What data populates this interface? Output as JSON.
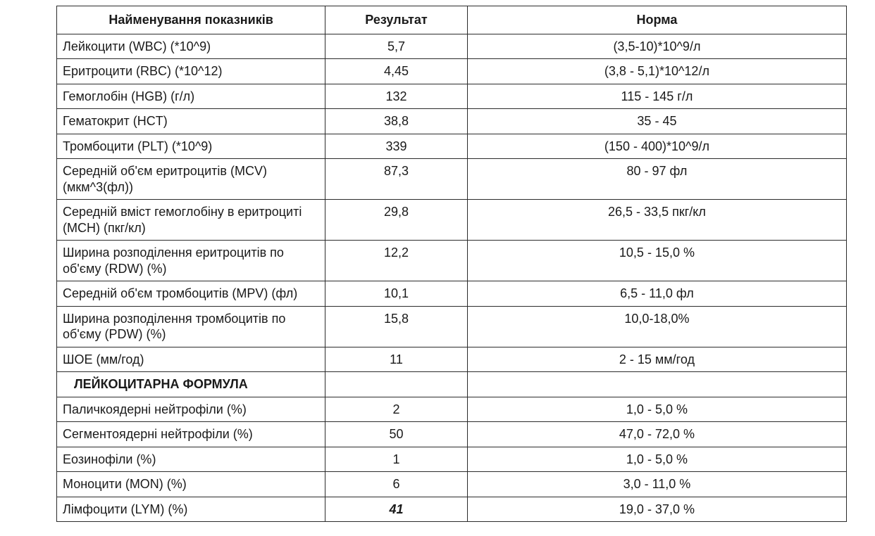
{
  "table": {
    "columns": [
      "Найменування показників",
      "Результат",
      "Норма"
    ],
    "column_widths_pct": [
      34,
      18,
      48
    ],
    "border_color": "#2b2b2b",
    "text_color": "#1a1a1a",
    "background_color": "#ffffff",
    "header_fontsize_pt": 14,
    "cell_fontsize_pt": 14,
    "emphasis_row_index": 16,
    "section_row_index": 11,
    "rows": [
      {
        "name": "Лейкоцити (WBC) (*10^9)",
        "result": "5,7",
        "norm": "(3,5-10)*10^9/л"
      },
      {
        "name": "Еритроцити (RBC) (*10^12)",
        "result": "4,45",
        "norm": "(3,8 - 5,1)*10^12/л"
      },
      {
        "name": "Гемоглобін (HGB) (г/л)",
        "result": "132",
        "norm": "115 - 145 г/л"
      },
      {
        "name": "Гематокрит (HCT)",
        "result": "38,8",
        "norm": "35 - 45"
      },
      {
        "name": "Тромбоцити (PLT) (*10^9)",
        "result": "339",
        "norm": "(150 - 400)*10^9/л"
      },
      {
        "name": "Середній об'єм еритроцитів (MCV) (мкм^3(фл))",
        "result": "87,3",
        "norm": "80 - 97 фл"
      },
      {
        "name": "Середній вміст гемоглобіну в еритроциті (MCH) (пкг/кл)",
        "result": "29,8",
        "norm": "26,5 - 33,5 пкг/кл"
      },
      {
        "name": "Ширина розподілення еритроцитів по об'єму (RDW) (%)",
        "result": "12,2",
        "norm": "10,5 - 15,0 %"
      },
      {
        "name": "Середній об'єм тромбоцитів (MPV) (фл)",
        "result": "10,1",
        "norm": "6,5 - 11,0 фл"
      },
      {
        "name": "Ширина розподілення тромбоцитів по об'єму (PDW) (%)",
        "result": "15,8",
        "norm": "10,0-18,0%"
      },
      {
        "name": "ШОЕ (мм/год)",
        "result": "11",
        "norm": "2 - 15 мм/год"
      },
      {
        "name": "ЛЕЙКОЦИТАРНА ФОРМУЛА",
        "result": "",
        "norm": "",
        "section": true
      },
      {
        "name": "Паличкоядерні нейтрофіли (%)",
        "result": "2",
        "norm": "1,0 - 5,0 %"
      },
      {
        "name": "Сегментоядерні нейтрофіли (%)",
        "result": "50",
        "norm": "47,0 - 72,0 %"
      },
      {
        "name": "Еозинофіли (%)",
        "result": "1",
        "norm": "1,0 - 5,0 %"
      },
      {
        "name": "Моноцити (MON) (%)",
        "result": "6",
        "norm": "3,0 - 11,0 %"
      },
      {
        "name": "Лімфоцити (LYM) (%)",
        "result": "41",
        "norm": "19,0 - 37,0 %",
        "emphasis": true
      }
    ]
  }
}
